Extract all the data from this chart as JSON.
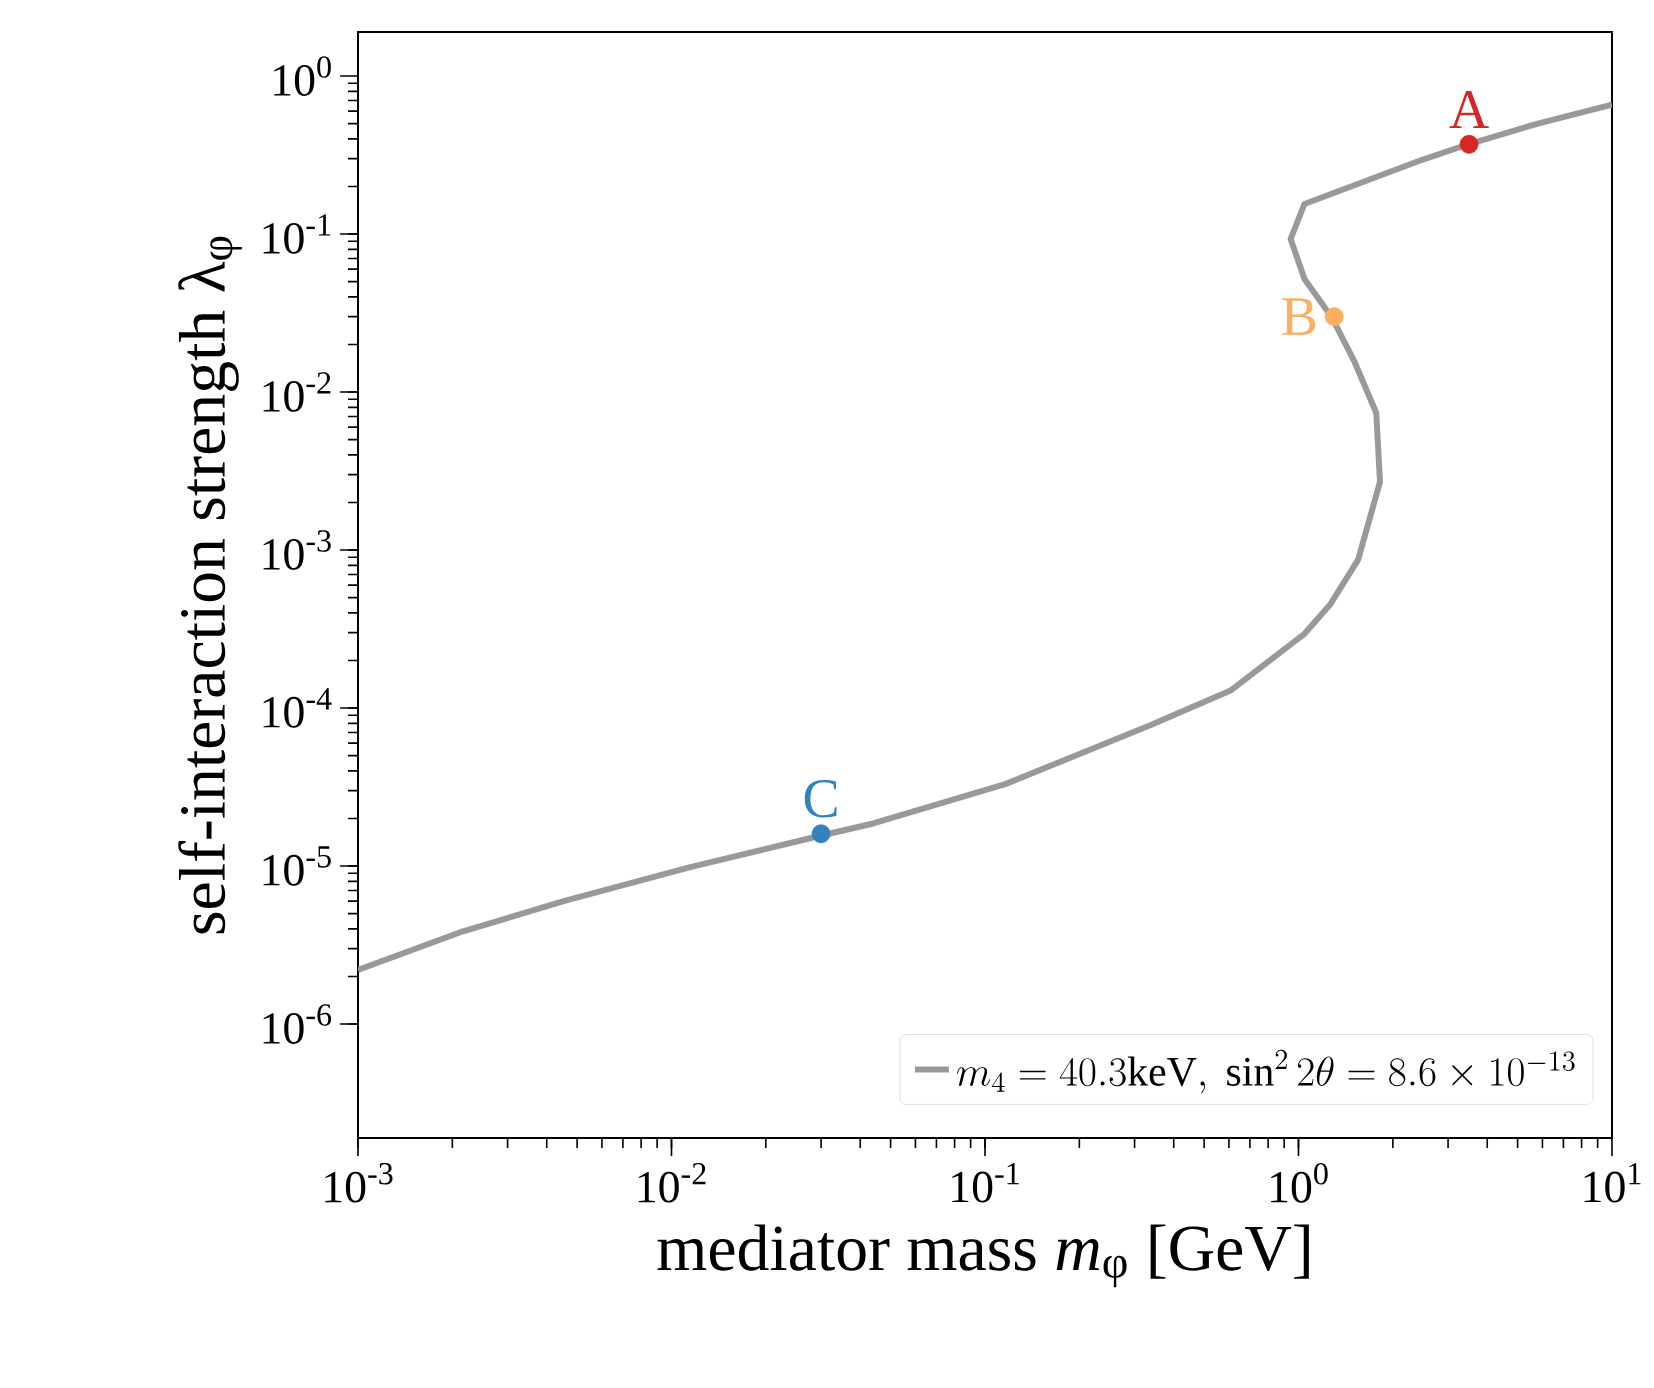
{
  "chart_data": {
    "type": "line",
    "xlabel": "mediator mass *m*$_{φ}$ [GeV]",
    "ylabel": "self-interaction strength λ$_{φ}$",
    "log": "xy",
    "grid": false,
    "legend": "bottom right",
    "xlim": [
      0.001,
      10
    ],
    "ylim": [
      1.9e-07,
      1.9
    ],
    "xticks": [
      {
        "value": 0.001,
        "label": "10$^{-3}$"
      },
      {
        "value": 0.01,
        "label": "10$^{-2}$"
      },
      {
        "value": 0.1,
        "label": "10$^{-1}$"
      },
      {
        "value": 1,
        "label": "10$^{0}$"
      },
      {
        "value": 10,
        "label": "10$^{1}$"
      }
    ],
    "yticks": [
      {
        "value": 1e-06,
        "label": "10$^{-6}$"
      },
      {
        "value": 1e-05,
        "label": "10$^{-5}$"
      },
      {
        "value": 0.0001,
        "label": "10$^{-4}$"
      },
      {
        "value": 0.001,
        "label": "10$^{-3}$"
      },
      {
        "value": 0.01,
        "label": "10$^{-2}$"
      },
      {
        "value": 0.1,
        "label": "10$^{-1}$"
      },
      {
        "value": 1,
        "label": "10$^{0}$"
      }
    ],
    "series": [
      {
        "name": "m_4 = 40.3\\mathrm{keV},\\ \\sin^2 2\\theta = 8.6\\times 10^{-13}",
        "color": "#999999",
        "line_style": "solid",
        "x": [
          0.001,
          0.00211,
          0.00453,
          0.0114,
          0.0296,
          0.044,
          0.116,
          0.338,
          0.607,
          1.045,
          1.26,
          1.55,
          1.82,
          1.77,
          1.51,
          1.28,
          1.045,
          0.944,
          1.045,
          2.48,
          3.48,
          5.8,
          10
        ],
        "values": [
          2.2e-06,
          3.8e-06,
          6e-06,
          9.8e-06,
          1.55e-05,
          1.86e-05,
          3.3e-05,
          7.8e-05,
          0.000129,
          0.000295,
          0.00045,
          0.00087,
          0.0027,
          0.0074,
          0.0155,
          0.0295,
          0.052,
          0.093,
          0.155,
          0.295,
          0.37,
          0.5,
          0.66
        ]
      },
      {
        "type": "scatter",
        "marker": "circle",
        "x": [
          3.5,
          1.3,
          0.03
        ],
        "values": [
          0.37,
          0.03,
          1.6e-05
        ],
        "colors": [
          "#d62728",
          "#fdae61",
          "#3182bd"
        ]
      }
    ],
    "annotations": [
      {
        "text": "A",
        "x": 3.5,
        "y": 0.37
      },
      {
        "text": "B",
        "x": 1.3,
        "y": 0.03
      },
      {
        "text": "C",
        "x": 0.03,
        "y": 1.6e-05
      }
    ]
  }
}
